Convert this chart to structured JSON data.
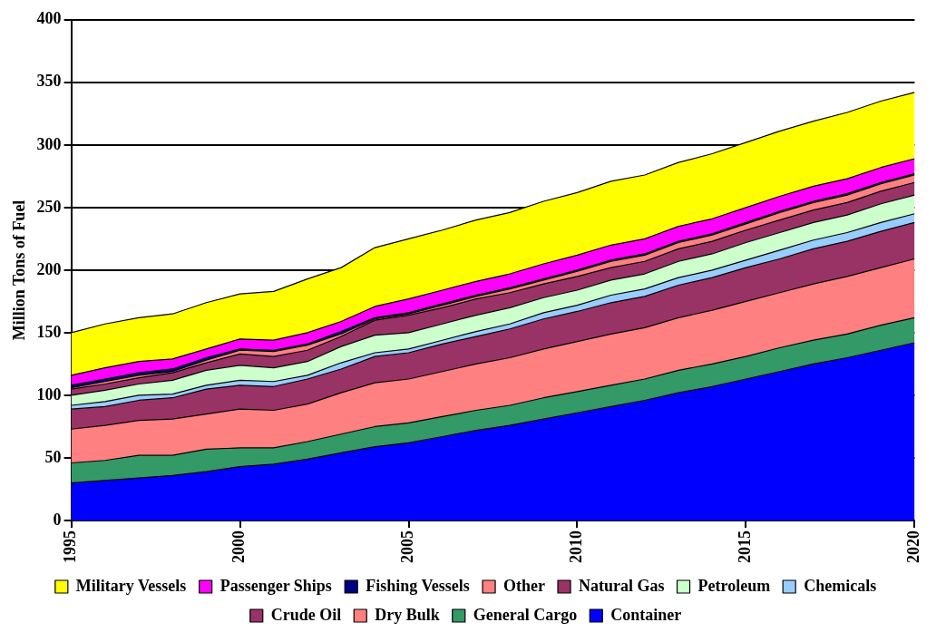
{
  "chart_data": {
    "type": "area",
    "stacked": true,
    "ylabel": "Million Tons of Fuel",
    "x": [
      1995,
      1996,
      1997,
      1998,
      1999,
      2000,
      2001,
      2002,
      2003,
      2004,
      2005,
      2006,
      2007,
      2008,
      2009,
      2010,
      2011,
      2012,
      2013,
      2014,
      2015,
      2016,
      2017,
      2018,
      2019,
      2020
    ],
    "xlim": [
      1995,
      2020
    ],
    "xticks": [
      1995,
      2000,
      2005,
      2010,
      2015,
      2020
    ],
    "ylim": [
      0,
      400
    ],
    "yticks": [
      0,
      50,
      100,
      150,
      200,
      250,
      300,
      350,
      400
    ],
    "grid": "y",
    "legend": "bottom",
    "marker": "none",
    "line_style": "solid",
    "series": [
      {
        "name": "Container",
        "color": "#0000ff",
        "values": [
          30,
          32,
          34,
          36,
          39,
          43,
          45,
          49,
          54,
          59,
          62,
          67,
          72,
          76,
          81,
          86,
          91,
          96,
          102,
          107,
          113,
          119,
          125,
          130,
          136,
          142
        ]
      },
      {
        "name": "General Cargo",
        "color": "#339966",
        "values": [
          16,
          16,
          18,
          16,
          18,
          15,
          13,
          14,
          15,
          16,
          16,
          16,
          16,
          16,
          17,
          17,
          17,
          17,
          18,
          18,
          18,
          19,
          19,
          19,
          20,
          20
        ]
      },
      {
        "name": "Dry Bulk",
        "color": "#ff8080",
        "values": [
          27,
          28,
          28,
          29,
          28,
          31,
          30,
          30,
          33,
          35,
          35,
          36,
          37,
          38,
          39,
          40,
          41,
          41,
          42,
          43,
          44,
          44,
          45,
          46,
          46,
          47
        ]
      },
      {
        "name": "Crude Oil",
        "color": "#993366",
        "values": [
          16,
          15,
          16,
          17,
          20,
          19,
          19,
          20,
          19,
          21,
          21,
          22,
          22,
          23,
          24,
          24,
          25,
          25,
          26,
          26,
          27,
          27,
          28,
          28,
          29,
          29
        ]
      },
      {
        "name": "Chemicals",
        "color": "#99ccff",
        "values": [
          3,
          4,
          4,
          3,
          3,
          4,
          4,
          3,
          5,
          3,
          3,
          3,
          4,
          4,
          5,
          5,
          6,
          6,
          6,
          6,
          6,
          7,
          7,
          7,
          7,
          7
        ]
      },
      {
        "name": "Petroleum",
        "color": "#ccffcc",
        "values": [
          8,
          9,
          9,
          11,
          12,
          12,
          11,
          11,
          13,
          14,
          13,
          13,
          13,
          13,
          12,
          12,
          12,
          12,
          13,
          13,
          14,
          14,
          14,
          14,
          15,
          15
        ]
      },
      {
        "name": "Natural Gas",
        "color": "#993366",
        "values": [
          5,
          5,
          5,
          6,
          6,
          9,
          9,
          9,
          8,
          12,
          14,
          13,
          13,
          12,
          11,
          11,
          10,
          10,
          10,
          10,
          10,
          10,
          10,
          10,
          10,
          10
        ]
      },
      {
        "name": "Other",
        "color": "#ff8080",
        "values": [
          1,
          2,
          2,
          1,
          2,
          3,
          4,
          4,
          2,
          1,
          1,
          2,
          2,
          3,
          3,
          4,
          5,
          5,
          5,
          5,
          5,
          6,
          6,
          6,
          6,
          6
        ]
      },
      {
        "name": "Fishing Vessels",
        "color": "#000080",
        "values": [
          2,
          2,
          2,
          2,
          2,
          1,
          1,
          1,
          2,
          1,
          1,
          1,
          1,
          1,
          1,
          1,
          1,
          1,
          1,
          1,
          1,
          1,
          1,
          1,
          1,
          1
        ]
      },
      {
        "name": "Passenger Ships",
        "color": "#ff00ff",
        "values": [
          8,
          9,
          9,
          8,
          7,
          8,
          8,
          9,
          8,
          9,
          11,
          11,
          11,
          11,
          12,
          12,
          12,
          12,
          12,
          12,
          12,
          12,
          12,
          12,
          12,
          12
        ]
      },
      {
        "name": "Military Vessels",
        "color": "#ffff00",
        "values": [
          34,
          35,
          35,
          36,
          37,
          36,
          39,
          43,
          43,
          47,
          48,
          48,
          49,
          49,
          50,
          50,
          51,
          51,
          51,
          52,
          52,
          52,
          52,
          53,
          53,
          53
        ]
      }
    ]
  }
}
